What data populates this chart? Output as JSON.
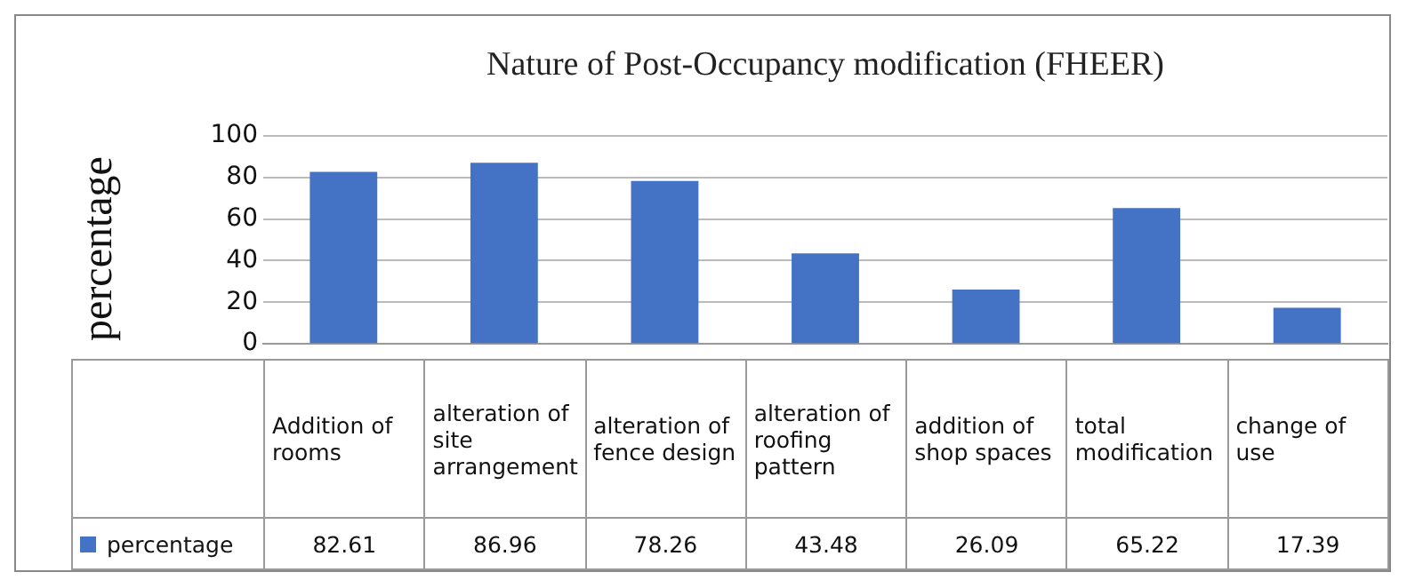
{
  "chart_data": {
    "type": "bar",
    "title": "Nature of Post-Occupancy modification (FHEER)",
    "ylabel": "percentage",
    "categories": [
      "Addition of rooms",
      "alteration of site arrangement",
      "alteration of fence design",
      "alteration of roofing pattern",
      "addition of shop spaces",
      "total modification",
      "change of use"
    ],
    "series": [
      {
        "name": "percentage",
        "color": "#4472c4",
        "values": [
          82.61,
          86.96,
          78.26,
          43.48,
          26.09,
          65.22,
          17.39
        ]
      }
    ],
    "ylim": [
      0,
      100
    ],
    "yticks": [
      0,
      20,
      40,
      60,
      80,
      100
    ],
    "grid": "y",
    "legend": "bottom",
    "data_labels": true
  }
}
